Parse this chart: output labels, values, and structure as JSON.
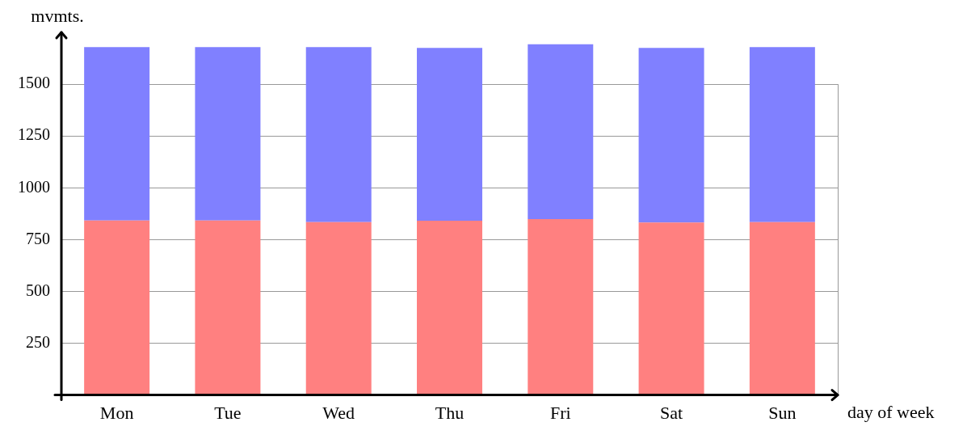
{
  "chart_data": {
    "type": "bar",
    "stacked": true,
    "xlabel": "day of week",
    "ylabel": "mvmts.",
    "categories": [
      "Mon",
      "Tue",
      "Wed",
      "Thu",
      "Fri",
      "Sat",
      "Sun"
    ],
    "series": [
      {
        "color": "#ff8080",
        "values": [
          842,
          842,
          834,
          841,
          849,
          832,
          834
        ]
      },
      {
        "color": "#8080ff",
        "values": [
          837,
          837,
          845,
          834,
          843,
          843,
          845
        ]
      }
    ],
    "ylim": [
      0,
      1750
    ],
    "yticks": [
      250,
      500,
      750,
      1000,
      1250,
      1500
    ],
    "grid": "y",
    "legend": false
  }
}
